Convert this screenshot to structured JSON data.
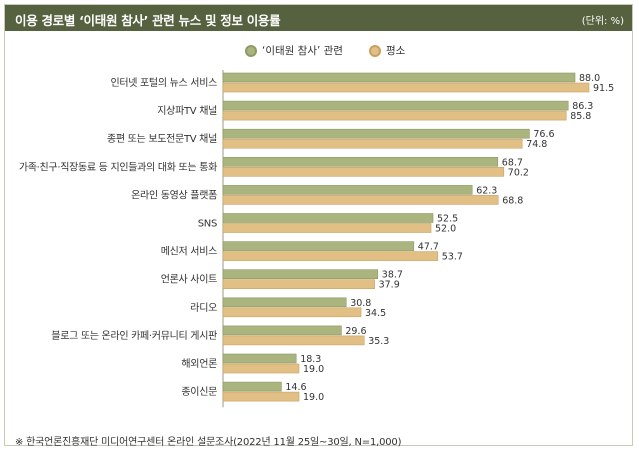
{
  "header": {
    "title": "이용 경로별 ‘이태원 참사’ 관련 뉴스 및 정보 이용률",
    "unit": "(단위: %)"
  },
  "colors": {
    "header_bg": "#55613f",
    "series1": "#a9b47f",
    "series1_border": "#8d9a62",
    "series2": "#e2bf85",
    "series2_border": "#c9a064"
  },
  "chart_data": {
    "type": "bar",
    "orientation": "horizontal",
    "categories": [
      "인터넷 포털의 뉴스 서비스",
      "지상파TV 채널",
      "종편 또는 보도전문TV 채널",
      "가족·친구·직장동료 등 지인들과의 대화 또는 통화",
      "온라인 동영상 플랫폼",
      "SNS",
      "메신저 서비스",
      "언론사 사이트",
      "라디오",
      "블로그 또는 온라인 카페·커뮤니티 게시판",
      "해외언론",
      "종이신문"
    ],
    "series": [
      {
        "name": "‘이태원 참사’ 관련",
        "values": [
          88.0,
          86.3,
          76.6,
          68.7,
          62.3,
          52.5,
          47.7,
          38.7,
          30.8,
          29.6,
          18.3,
          14.6
        ]
      },
      {
        "name": "평소",
        "values": [
          91.5,
          85.8,
          74.8,
          70.2,
          68.8,
          52.0,
          53.7,
          37.9,
          34.5,
          35.3,
          19.0,
          19.0
        ]
      }
    ],
    "xlim": [
      0,
      100
    ],
    "grid": false,
    "legend": "top-center"
  },
  "note": "※ 한국언론진흥재단 미디어연구센터 온라인 설문조사(2022년 11월 25일~30일, N=1,000)"
}
